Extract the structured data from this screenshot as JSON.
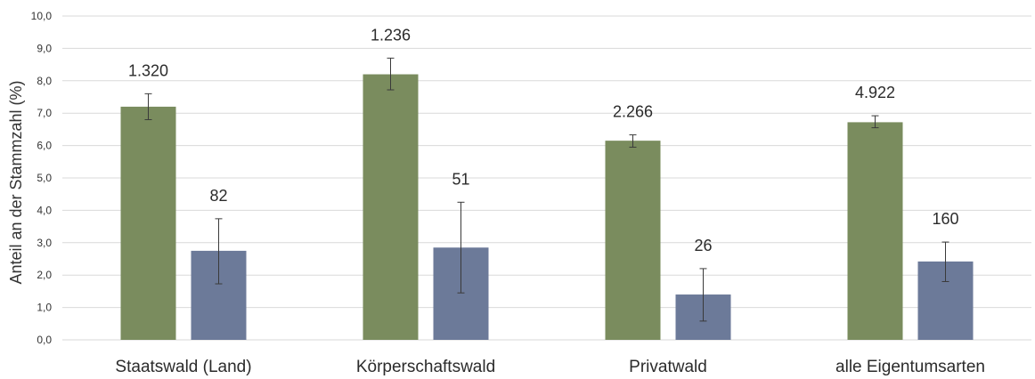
{
  "chart_data": {
    "type": "bar",
    "title": "",
    "xlabel": "",
    "ylabel": "Anteil an der Stammzahl (%)",
    "ylim": [
      0,
      10
    ],
    "yticks": [
      "0,0",
      "1,0",
      "2,0",
      "3,0",
      "4,0",
      "5,0",
      "6,0",
      "7,0",
      "8,0",
      "9,0",
      "10,0"
    ],
    "grid": true,
    "legend": "none",
    "categories": [
      "Staatswald (Land)",
      "Körperschaftswald",
      "Privatwald",
      "alle Eigentumsarten"
    ],
    "series": [
      {
        "color": "#7a8c5e",
        "values": [
          7.2,
          8.2,
          6.15,
          6.72
        ],
        "error_low": [
          6.8,
          7.72,
          5.95,
          6.55
        ],
        "error_high": [
          7.6,
          8.7,
          6.33,
          6.92
        ],
        "labels": [
          "1.320",
          "1.236",
          "2.266",
          "4.922"
        ]
      },
      {
        "color": "#6c7a99",
        "values": [
          2.75,
          2.85,
          1.4,
          2.42
        ],
        "error_low": [
          1.73,
          1.45,
          0.58,
          1.8
        ],
        "error_high": [
          3.74,
          4.25,
          2.2,
          3.02
        ],
        "labels": [
          "82",
          "51",
          "26",
          "160"
        ]
      }
    ]
  }
}
